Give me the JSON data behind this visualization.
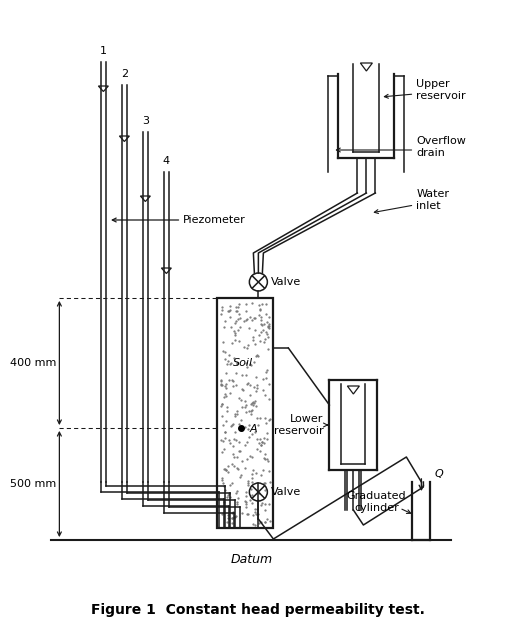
{
  "title": "Figure 1  Constant head permeability test.",
  "title_fontsize": 10,
  "background_color": "#ffffff",
  "line_color": "#1a1a1a",
  "fig_width": 4.74,
  "fig_height": 6.23,
  "tube_labels": [
    "1",
    "2",
    "3",
    "4"
  ],
  "piezometer_label": "← Piezometer",
  "upper_reservoir_label": "Upper\nreservoir",
  "overflow_drain_label": "Overflow\ndrain",
  "water_inlet_label": "Water\ninlet",
  "valve_label": "Valve",
  "soil_label": "Soil",
  "point_A_label": "A",
  "lower_reservoir_label": "Lower\nreservoir",
  "graduated_cylinder_label": "Graduated\ncylinder",
  "datum_label": "Datum",
  "dim_400_label": "400 mm",
  "dim_500_label": "500 mm",
  "Q_label": "Q"
}
